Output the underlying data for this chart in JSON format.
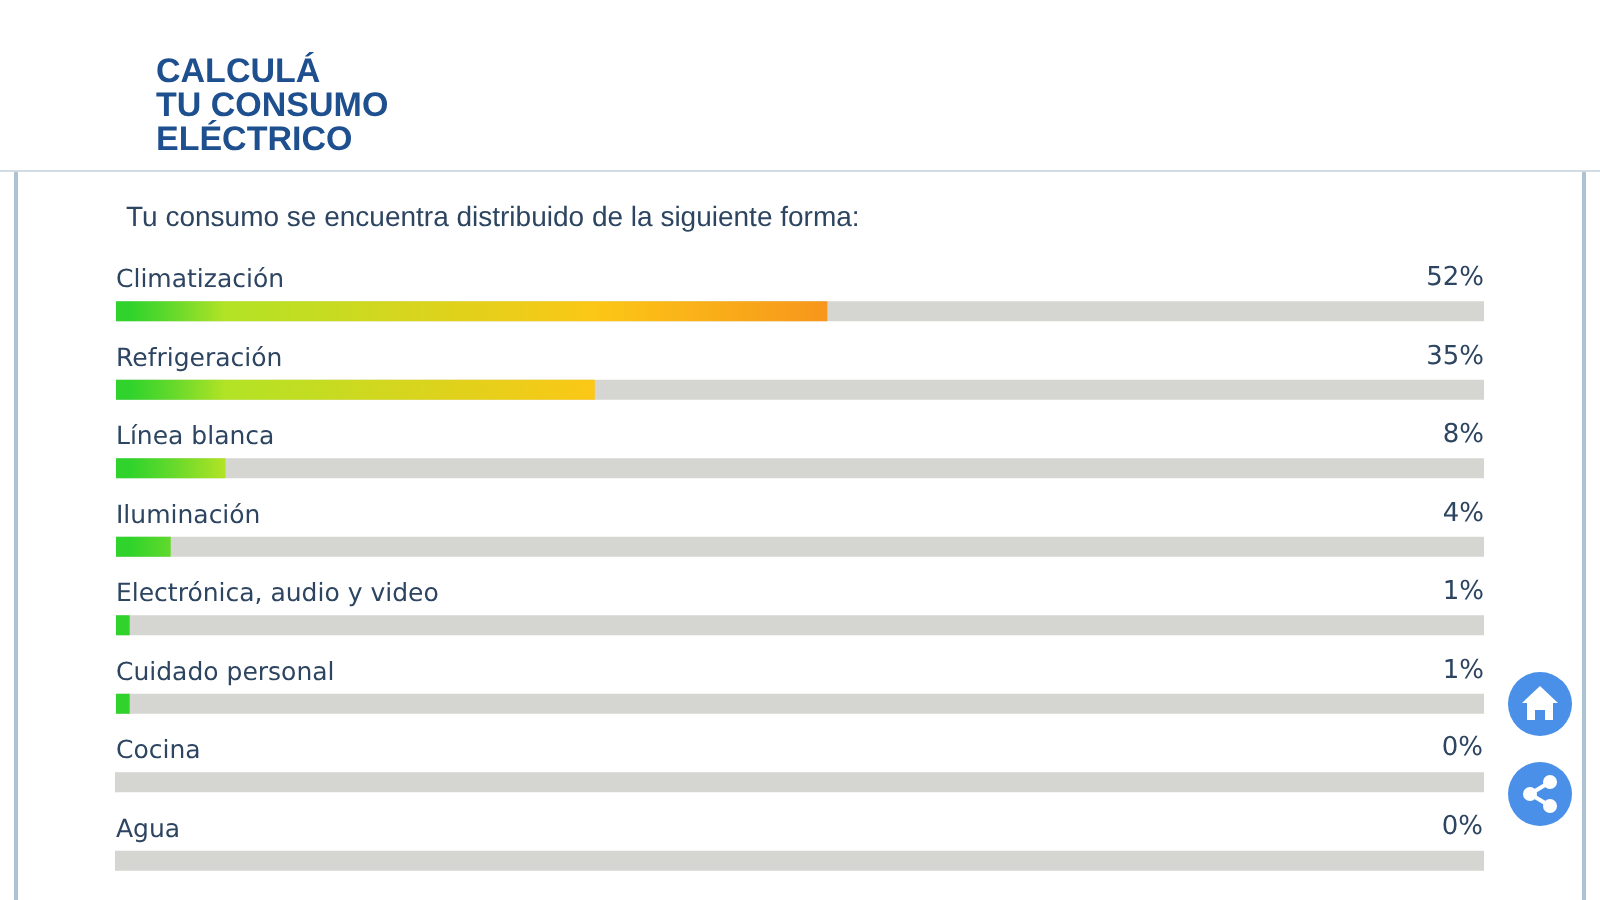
{
  "chart_data": {
    "type": "bar",
    "orientation": "horizontal",
    "title": "CALCULÁ\nTU CONSUMO\nELÉCTRICO",
    "subtitle": "Tu consumo se encuentra distribuido de la siguiente forma:",
    "categories": [
      "Climatización",
      "Refrigeración",
      "Línea blanca",
      "Iluminación",
      "Electrónica, audio y video",
      "Cuidado personal",
      "Cocina",
      "Agua"
    ],
    "values": [
      52,
      35,
      8,
      4,
      1,
      1,
      0,
      0
    ],
    "value_labels": [
      "52%",
      "35%",
      "8%",
      "4%",
      "1%",
      "1%",
      "0%",
      "0%"
    ],
    "colors": [
      "#f7961c",
      "#fcc716",
      "#b2e325",
      "#62d92b",
      "#2fd32c",
      "#2fd32c",
      null,
      null
    ],
    "xlim": [
      0,
      100
    ],
    "tick_labels": "y"
  }
}
